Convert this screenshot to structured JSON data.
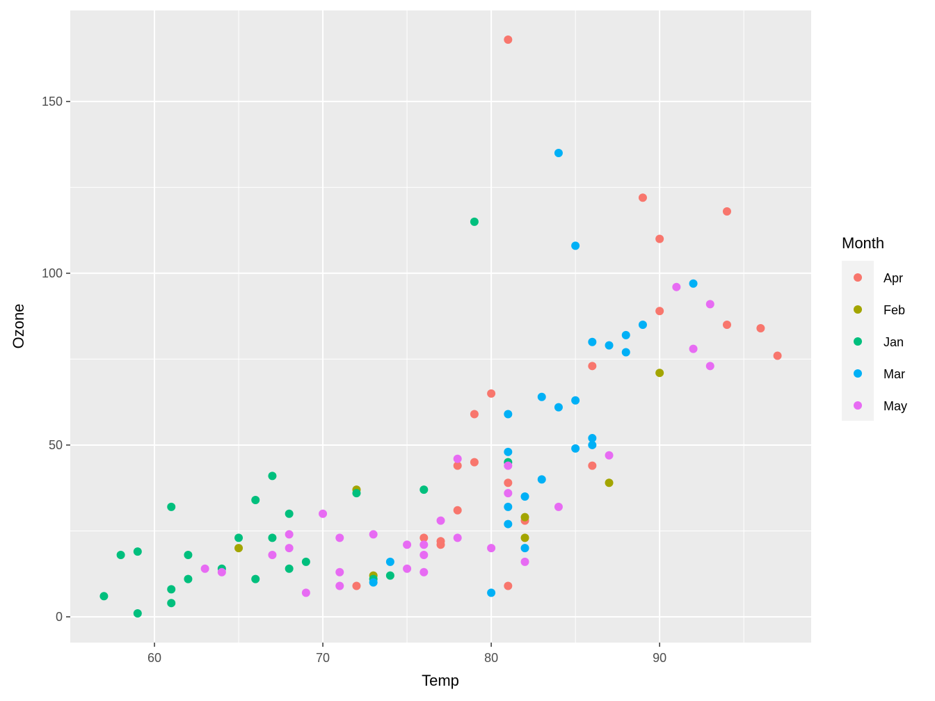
{
  "chart_data": {
    "type": "scatter",
    "xlabel": "Temp",
    "ylabel": "Ozone",
    "xlim": [
      55.0,
      99.0
    ],
    "ylim": [
      -7.5,
      176.5
    ],
    "x_major_ticks": [
      60,
      70,
      80,
      90
    ],
    "x_minor_ticks": [
      65,
      75,
      85,
      95
    ],
    "y_major_ticks": [
      0,
      50,
      100,
      150
    ],
    "y_minor_ticks": [
      25,
      75,
      125
    ],
    "grid": true,
    "legend": {
      "title": "Month",
      "position": "right",
      "entries": [
        "Apr",
        "Feb",
        "Jan",
        "Mar",
        "May"
      ]
    },
    "series": [
      {
        "name": "Apr",
        "color": "#F8766D",
        "points": [
          [
            81,
            168
          ],
          [
            89,
            122
          ],
          [
            94,
            118
          ],
          [
            90,
            110
          ],
          [
            90,
            89
          ],
          [
            94,
            85
          ],
          [
            96,
            84
          ],
          [
            97,
            76
          ],
          [
            86,
            73
          ],
          [
            80,
            65
          ],
          [
            79,
            59
          ],
          [
            79,
            45
          ],
          [
            78,
            44
          ],
          [
            86,
            44
          ],
          [
            81,
            39
          ],
          [
            78,
            31
          ],
          [
            82,
            28
          ],
          [
            76,
            23
          ],
          [
            77,
            22
          ],
          [
            77,
            21
          ],
          [
            72,
            9
          ],
          [
            81,
            9
          ]
        ]
      },
      {
        "name": "Feb",
        "color": "#A3A500",
        "points": [
          [
            90,
            71
          ],
          [
            87,
            39
          ],
          [
            72,
            37
          ],
          [
            82,
            29
          ],
          [
            82,
            23
          ],
          [
            65,
            20
          ],
          [
            73,
            12
          ]
        ]
      },
      {
        "name": "Jan",
        "color": "#00BF7D",
        "points": [
          [
            79,
            115
          ],
          [
            81,
            45
          ],
          [
            67,
            41
          ],
          [
            72,
            36
          ],
          [
            76,
            37
          ],
          [
            66,
            34
          ],
          [
            61,
            32
          ],
          [
            68,
            30
          ],
          [
            65,
            23
          ],
          [
            67,
            23
          ],
          [
            58,
            18
          ],
          [
            59,
            19
          ],
          [
            62,
            18
          ],
          [
            69,
            16
          ],
          [
            64,
            14
          ],
          [
            68,
            14
          ],
          [
            74,
            12
          ],
          [
            62,
            11
          ],
          [
            66,
            11
          ],
          [
            61,
            8
          ],
          [
            57,
            6
          ],
          [
            61,
            4
          ],
          [
            59,
            1
          ],
          [
            73,
            11
          ]
        ]
      },
      {
        "name": "Mar",
        "color": "#00B0F6",
        "points": [
          [
            84,
            135
          ],
          [
            85,
            108
          ],
          [
            92,
            97
          ],
          [
            89,
            85
          ],
          [
            88,
            82
          ],
          [
            86,
            80
          ],
          [
            87,
            79
          ],
          [
            88,
            77
          ],
          [
            83,
            64
          ],
          [
            85,
            63
          ],
          [
            84,
            61
          ],
          [
            81,
            59
          ],
          [
            86,
            52
          ],
          [
            86,
            50
          ],
          [
            85,
            49
          ],
          [
            81,
            48
          ],
          [
            83,
            40
          ],
          [
            82,
            35
          ],
          [
            81,
            32
          ],
          [
            81,
            27
          ],
          [
            82,
            20
          ],
          [
            74,
            16
          ],
          [
            73,
            10
          ],
          [
            80,
            7
          ]
        ]
      },
      {
        "name": "May",
        "color": "#E76BF3",
        "points": [
          [
            91,
            96
          ],
          [
            93,
            91
          ],
          [
            92,
            78
          ],
          [
            93,
            73
          ],
          [
            87,
            47
          ],
          [
            78,
            46
          ],
          [
            81,
            44
          ],
          [
            81,
            36
          ],
          [
            84,
            32
          ],
          [
            70,
            30
          ],
          [
            77,
            28
          ],
          [
            68,
            24
          ],
          [
            73,
            24
          ],
          [
            71,
            23
          ],
          [
            78,
            23
          ],
          [
            75,
            21
          ],
          [
            76,
            21
          ],
          [
            68,
            20
          ],
          [
            80,
            20
          ],
          [
            67,
            18
          ],
          [
            76,
            18
          ],
          [
            82,
            16
          ],
          [
            63,
            14
          ],
          [
            75,
            14
          ],
          [
            64,
            13
          ],
          [
            71,
            13
          ],
          [
            76,
            13
          ],
          [
            71,
            9
          ],
          [
            69,
            7
          ]
        ]
      }
    ]
  }
}
